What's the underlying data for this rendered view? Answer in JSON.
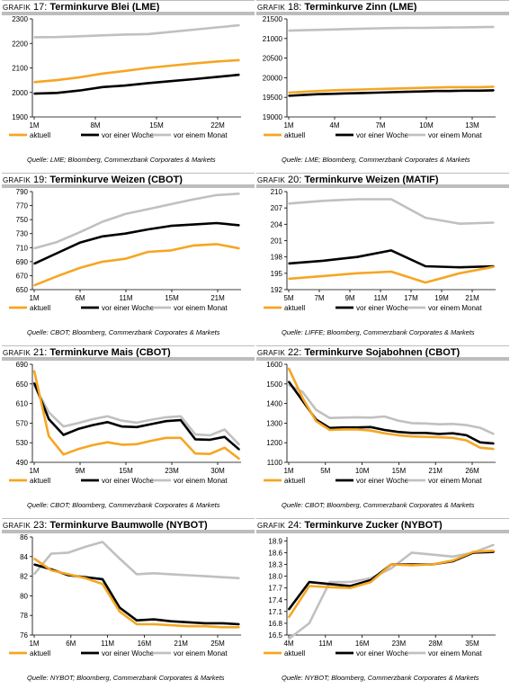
{
  "colors": {
    "aktuell": "#f5a623",
    "woche": "#000000",
    "monat": "#c0c0c0"
  },
  "chart_data": [
    {
      "type": "line",
      "title_prefix": "Grafik",
      "title_number": "17",
      "title": "Terminkurve Blei (LME)",
      "source": "Quelle: LME; Bloomberg, Commerzbank Corporates & Markets",
      "xlabel": "",
      "ylabel": "",
      "x_tick_labels": [
        "1M",
        "8M",
        "15M",
        "22M"
      ],
      "ylim": [
        1900,
        2300
      ],
      "y_ticks": [
        1900,
        2000,
        2100,
        2200,
        2300
      ],
      "legend": "bottom",
      "series": [
        {
          "name": "aktuell",
          "values": [
            2042,
            2050,
            2062,
            2077,
            2088,
            2100,
            2109,
            2118,
            2126,
            2132
          ]
        },
        {
          "name": "vor einer Woche",
          "values": [
            1995,
            1998,
            2008,
            2022,
            2028,
            2038,
            2046,
            2054,
            2063,
            2072
          ]
        },
        {
          "name": "vor einem Monat",
          "values": [
            2225,
            2226,
            2229,
            2233,
            2236,
            2238,
            2247,
            2256,
            2265,
            2274
          ]
        }
      ]
    },
    {
      "type": "line",
      "title_prefix": "Grafik",
      "title_number": "18",
      "title": "Terminkurve Zinn (LME)",
      "source": "Quelle: LME; Bloomberg, Commerzbank Corporates & Markets",
      "xlabel": "",
      "ylabel": "",
      "x_tick_labels": [
        "1M",
        "4M",
        "7M",
        "10M",
        "13M"
      ],
      "ylim": [
        19000,
        21500
      ],
      "y_ticks": [
        19000,
        19500,
        20000,
        20500,
        21000,
        21500
      ],
      "legend": "bottom",
      "series": [
        {
          "name": "aktuell",
          "values": [
            19620,
            19640,
            19660,
            19680,
            19690,
            19700,
            19710,
            19720,
            19730,
            19740,
            19750,
            19760,
            19760,
            19760,
            19770
          ]
        },
        {
          "name": "vor einer Woche",
          "values": [
            19540,
            19560,
            19580,
            19590,
            19600,
            19610,
            19620,
            19630,
            19640,
            19650,
            19660,
            19660,
            19670,
            19670,
            19680
          ]
        },
        {
          "name": "vor einem Monat",
          "values": [
            21200,
            21210,
            21220,
            21230,
            21240,
            21250,
            21260,
            21265,
            21270,
            21270,
            21275,
            21280,
            21285,
            21290,
            21295
          ]
        }
      ]
    },
    {
      "type": "line",
      "title_prefix": "Grafik",
      "title_number": "19",
      "title": "Terminkurve Weizen (CBOT)",
      "source": "Quelle: CBOT; Bloomberg, Commerzbank Corporates & Markets",
      "xlabel": "",
      "ylabel": "",
      "x_tick_labels": [
        "1M",
        "6M",
        "11M",
        "15M",
        "21M"
      ],
      "ylim": [
        650,
        790
      ],
      "y_ticks": [
        650,
        670,
        690,
        710,
        730,
        750,
        770,
        790
      ],
      "legend": "bottom",
      "series": [
        {
          "name": "aktuell",
          "values": [
            656,
            669,
            681,
            690,
            694,
            704,
            706,
            713,
            715,
            709
          ]
        },
        {
          "name": "vor einer Woche",
          "values": [
            687,
            702,
            717,
            726,
            730,
            736,
            741,
            743,
            745,
            742
          ]
        },
        {
          "name": "vor einem Monat",
          "values": [
            709,
            718,
            732,
            747,
            758,
            765,
            772,
            779,
            785,
            787
          ]
        }
      ]
    },
    {
      "type": "line",
      "title_prefix": "Grafik",
      "title_number": "20",
      "title": "Terminkurve Weizen (MATIF)",
      "source": "Quelle: LIFFE; Bloomberg, Commerzbank Corporates & Markets",
      "xlabel": "",
      "ylabel": "",
      "x_tick_labels": [
        "5M",
        "7M",
        "9M",
        "11M",
        "17M",
        "19M",
        "21M"
      ],
      "ylim": [
        192,
        210
      ],
      "y_ticks": [
        192,
        195,
        198,
        201,
        204,
        207,
        210
      ],
      "legend": "bottom",
      "series": [
        {
          "name": "aktuell",
          "values": [
            194.0,
            194.5,
            195.0,
            195.3,
            193.3,
            195.0,
            196.2
          ]
        },
        {
          "name": "vor einer Woche",
          "values": [
            196.8,
            197.3,
            198.0,
            199.2,
            196.3,
            196.1,
            196.3
          ]
        },
        {
          "name": "vor einem Monat",
          "values": [
            207.8,
            208.3,
            208.6,
            208.6,
            205.2,
            204.1,
            204.3
          ]
        }
      ]
    },
    {
      "type": "line",
      "title_prefix": "Grafik",
      "title_number": "21",
      "title": "Terminkurve Mais (CBOT)",
      "source": "Quelle: CBOT; Bloomberg, Commerzbank Corporates & Markets",
      "xlabel": "",
      "ylabel": "",
      "x_tick_labels": [
        "1M",
        "9M",
        "15M",
        "23M",
        "30M"
      ],
      "ylim": [
        490,
        690
      ],
      "y_ticks": [
        490,
        530,
        570,
        610,
        650,
        690
      ],
      "legend": "bottom",
      "series": [
        {
          "name": "aktuell",
          "values": [
            677,
            543,
            506,
            517,
            525,
            531,
            526,
            527,
            534,
            540,
            540,
            508,
            507,
            520,
            497
          ]
        },
        {
          "name": "vor einer Woche",
          "values": [
            652,
            578,
            546,
            558,
            566,
            572,
            563,
            562,
            568,
            574,
            576,
            537,
            536,
            542,
            516
          ]
        },
        {
          "name": "vor einem Monat",
          "values": [
            647,
            592,
            563,
            570,
            578,
            584,
            575,
            571,
            577,
            582,
            584,
            547,
            545,
            557,
            526
          ]
        }
      ]
    },
    {
      "type": "line",
      "title_prefix": "Grafik",
      "title_number": "22",
      "title": "Terminkurve Sojabohnen (CBOT)",
      "source": "Quelle: CBOT; Bloomberg, Commerzbank Corporates & Markets",
      "xlabel": "",
      "ylabel": "",
      "x_tick_labels": [
        "1M",
        "5M",
        "10M",
        "15M",
        "21M",
        "26M"
      ],
      "ylim": [
        1100,
        1600
      ],
      "y_ticks": [
        1100,
        1200,
        1300,
        1400,
        1500,
        1600
      ],
      "legend": "bottom",
      "series": [
        {
          "name": "aktuell",
          "values": [
            1580,
            1430,
            1310,
            1265,
            1268,
            1268,
            1262,
            1248,
            1238,
            1232,
            1230,
            1228,
            1225,
            1212,
            1175,
            1168
          ]
        },
        {
          "name": "vor einer Woche",
          "values": [
            1512,
            1415,
            1318,
            1275,
            1278,
            1278,
            1280,
            1265,
            1255,
            1250,
            1250,
            1245,
            1248,
            1238,
            1202,
            1196
          ]
        },
        {
          "name": "vor einem Monat",
          "values": [
            1495,
            1460,
            1368,
            1326,
            1328,
            1330,
            1328,
            1334,
            1313,
            1300,
            1298,
            1294,
            1296,
            1290,
            1276,
            1244
          ]
        }
      ]
    },
    {
      "type": "line",
      "title_prefix": "Grafik",
      "title_number": "23",
      "title": "Terminkurve Baumwolle (NYBOT)",
      "source": "Quelle: NYBOT; Bloomberg, Commerzbank Corporates & Markets",
      "xlabel": "",
      "ylabel": "",
      "x_tick_labels": [
        "1M",
        "6M",
        "11M",
        "16M",
        "21M",
        "25M"
      ],
      "ylim": [
        76,
        86
      ],
      "y_ticks": [
        76,
        78,
        80,
        82,
        84,
        86
      ],
      "legend": "bottom",
      "series": [
        {
          "name": "aktuell",
          "values": [
            83.8,
            82.6,
            82.2,
            81.8,
            81.2,
            78.4,
            77.1,
            77.1,
            77.0,
            76.9,
            76.9,
            76.8,
            76.8
          ]
        },
        {
          "name": "vor einer Woche",
          "values": [
            83.2,
            82.7,
            82.1,
            81.9,
            81.7,
            78.8,
            77.5,
            77.6,
            77.4,
            77.3,
            77.2,
            77.2,
            77.1
          ]
        },
        {
          "name": "vor einem Monat",
          "values": [
            82.2,
            84.3,
            84.4,
            85.0,
            85.5,
            83.8,
            82.2,
            82.3,
            82.2,
            82.1,
            82.0,
            81.9,
            81.8
          ]
        }
      ]
    },
    {
      "type": "line",
      "title_prefix": "Grafik",
      "title_number": "24",
      "title": "Terminkurve Zucker (NYBOT)",
      "source": "Quelle: NYBOT; Bloomberg, Commerzbank Corporates & Markets",
      "xlabel": "",
      "ylabel": "",
      "x_tick_labels": [
        "4M",
        "11M",
        "16M",
        "23M",
        "28M",
        "35M"
      ],
      "ylim": [
        16.5,
        19.0
      ],
      "y_ticks": [
        16.5,
        16.8,
        17.1,
        17.4,
        17.7,
        18.0,
        18.3,
        18.6,
        18.9
      ],
      "y_tick_labels": [
        "16.5",
        "16.8",
        "17.1",
        "17.4",
        "17.7",
        "18.0",
        "18.3",
        "18.6",
        "18.9"
      ],
      "legend": "bottom",
      "series": [
        {
          "name": "aktuell",
          "values": [
            16.95,
            17.75,
            17.72,
            17.7,
            17.85,
            18.3,
            18.28,
            18.3,
            18.4,
            18.62,
            18.65
          ]
        },
        {
          "name": "vor einer Woche",
          "values": [
            17.15,
            17.85,
            17.8,
            17.75,
            17.9,
            18.3,
            18.3,
            18.3,
            18.38,
            18.6,
            18.62
          ]
        },
        {
          "name": "vor einem Monat",
          "values": [
            16.4,
            16.8,
            17.85,
            17.85,
            17.95,
            18.2,
            18.6,
            18.55,
            18.5,
            18.6,
            18.8
          ]
        }
      ]
    }
  ]
}
